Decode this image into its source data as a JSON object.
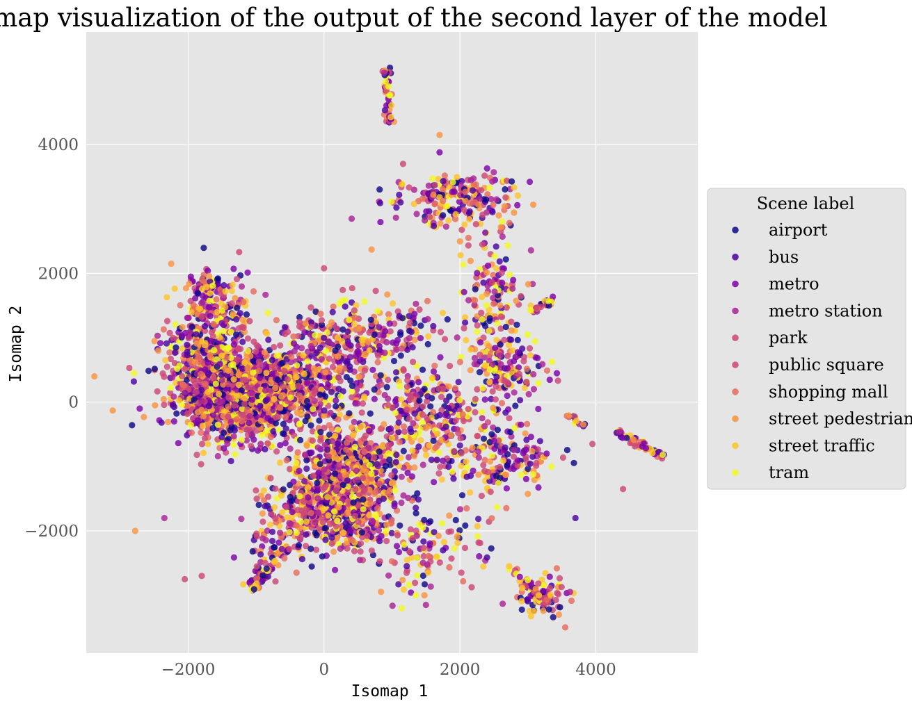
{
  "chart_data": {
    "type": "scatter",
    "title": "Isomap visualization of the output of the second layer of the model",
    "xlabel": "Isomap 1",
    "ylabel": "Isomap 2",
    "xlim": [
      -3500,
      5500
    ],
    "ylim": [
      -3900,
      5750
    ],
    "xticks": [
      -2000,
      0,
      2000,
      4000
    ],
    "yticks": [
      -2000,
      0,
      2000,
      4000
    ],
    "xtick_labels": [
      "−2000",
      "0",
      "2000",
      "4000"
    ],
    "ytick_labels": [
      "−2000",
      "0",
      "2000",
      "4000"
    ],
    "grid": true,
    "background": "#e5e5e5",
    "legend": {
      "title": "Scene label",
      "placement": "right"
    },
    "series": [
      {
        "name": "airport",
        "color": "#0d0887"
      },
      {
        "name": "bus",
        "color": "#4c02a1"
      },
      {
        "name": "metro",
        "color": "#7e03a8"
      },
      {
        "name": "metro station",
        "color": "#a92395"
      },
      {
        "name": "park",
        "color": "#cc4778"
      },
      {
        "name": "public square",
        "color": "#cc4778"
      },
      {
        "name": "shopping mall",
        "color": "#e56b5d"
      },
      {
        "name": "street pedestrian",
        "color": "#f89441"
      },
      {
        "name": "street traffic",
        "color": "#fdc328"
      },
      {
        "name": "tram",
        "color": "#f0f921"
      }
    ],
    "clusters": [
      {
        "x": -1300,
        "y": 150,
        "sx": 450,
        "sy": 330,
        "n": 1500
      },
      {
        "x": -800,
        "y": 100,
        "sx": 350,
        "sy": 280,
        "n": 300
      },
      {
        "x": 400,
        "y": -1000,
        "sx": 400,
        "sy": 350,
        "n": 550
      },
      {
        "x": -150,
        "y": -1550,
        "sx": 350,
        "sy": 250,
        "n": 250
      },
      {
        "x": 400,
        "y": -1850,
        "sx": 300,
        "sy": 250,
        "n": 220
      },
      {
        "x": 550,
        "y": 1050,
        "sx": 550,
        "sy": 280,
        "n": 260
      },
      {
        "x": 1500,
        "y": -150,
        "sx": 350,
        "sy": 350,
        "n": 200
      },
      {
        "x": 1900,
        "y": 3150,
        "sx": 450,
        "sy": 200,
        "n": 200
      },
      {
        "x": 2450,
        "y": 1700,
        "sx": 250,
        "sy": 650,
        "n": 170
      },
      {
        "x": 2700,
        "y": 500,
        "sx": 250,
        "sy": 250,
        "n": 120
      },
      {
        "x": 2200,
        "y": -800,
        "sx": 450,
        "sy": 400,
        "n": 160
      },
      {
        "x": 1500,
        "y": -2300,
        "sx": 400,
        "sy": 350,
        "n": 120
      },
      {
        "x": -1600,
        "y": 1450,
        "sx": 300,
        "sy": 250,
        "n": 150
      },
      {
        "x": -1700,
        "y": 1800,
        "sx": 150,
        "sy": 100,
        "n": 40
      },
      {
        "x": 3200,
        "y": -3000,
        "sx": 200,
        "sy": 150,
        "n": 90
      },
      {
        "x": 3000,
        "y": -900,
        "sx": 300,
        "sy": 200,
        "n": 60
      },
      {
        "x": -700,
        "y": -2200,
        "sx": 300,
        "sy": 300,
        "n": 80
      },
      {
        "x": -1800,
        "y": 800,
        "sx": 300,
        "sy": 250,
        "n": 160
      },
      {
        "x": 0,
        "y": 300,
        "sx": 450,
        "sy": 300,
        "n": 200
      }
    ],
    "streaks": [
      {
        "x0": 920,
        "y0": 5200,
        "x1": 960,
        "y1": 4300,
        "n": 45
      },
      {
        "x0": 3050,
        "y0": 1400,
        "x1": 3350,
        "y1": 1600,
        "n": 30
      },
      {
        "x0": 4300,
        "y0": -450,
        "x1": 5000,
        "y1": -850,
        "n": 55
      },
      {
        "x0": -1050,
        "y0": -2950,
        "x1": -600,
        "y1": -2300,
        "n": 35
      },
      {
        "x0": -900,
        "y0": -2500,
        "x1": -1100,
        "y1": -2900,
        "n": 15
      },
      {
        "x0": 3500,
        "y0": -150,
        "x1": 3850,
        "y1": -400,
        "n": 12
      },
      {
        "x0": 2750,
        "y0": -2550,
        "x1": 3300,
        "y1": -3150,
        "n": 30
      },
      {
        "x0": 2350,
        "y0": -1100,
        "x1": 2600,
        "y1": -1150,
        "n": 12
      }
    ],
    "outliers": [
      {
        "x": -3380,
        "y": 400
      },
      {
        "x": -2800,
        "y": 320
      },
      {
        "x": -2780,
        "y": -2000
      },
      {
        "x": -2350,
        "y": -1800
      },
      {
        "x": -2050,
        "y": -2750
      },
      {
        "x": -1800,
        "y": -2700
      },
      {
        "x": 1700,
        "y": 4150
      },
      {
        "x": 1700,
        "y": 3880
      },
      {
        "x": 4400,
        "y": -1350
      },
      {
        "x": 3550,
        "y": -3500
      },
      {
        "x": 3700,
        "y": -1800
      },
      {
        "x": 3950,
        "y": -650
      },
      {
        "x": 2100,
        "y": -1650
      },
      {
        "x": 1500,
        "y": -3150
      },
      {
        "x": -2250,
        "y": 2150
      },
      {
        "x": -1250,
        "y": 2330
      },
      {
        "x": 0,
        "y": 2080
      },
      {
        "x": 700,
        "y": 2370
      }
    ]
  }
}
